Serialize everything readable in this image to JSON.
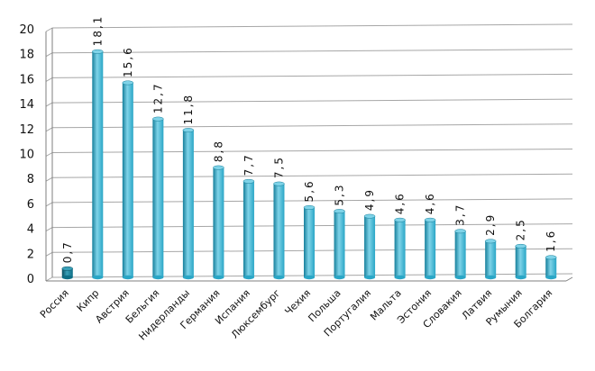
{
  "chart_data": {
    "type": "bar",
    "categories": [
      "Россия",
      "Кипр",
      "Австрия",
      "Бельгия",
      "Нидерланды",
      "Германия",
      "Испания",
      "Люксембург",
      "Чехия",
      "Польша",
      "Португалия",
      "Мальта",
      "Эстония",
      "Словакия",
      "Латвия",
      "Румыния",
      "Болгария"
    ],
    "values": [
      0.7,
      18.1,
      15.6,
      12.7,
      11.8,
      8.8,
      7.7,
      7.5,
      5.6,
      5.3,
      4.9,
      4.6,
      4.6,
      3.7,
      2.9,
      2.5,
      1.6
    ],
    "value_labels": [
      "0,7",
      "18,1",
      "15,6",
      "12,7",
      "11,8",
      "8,8",
      "7,7",
      "7,5",
      "5,6",
      "5,3",
      "4,9",
      "4,6",
      "4,6",
      "3,7",
      "2,9",
      "2,5",
      "1,6"
    ],
    "y_ticks": [
      "0",
      "2",
      "4",
      "6",
      "8",
      "10",
      "12",
      "14",
      "16",
      "18",
      "20"
    ],
    "ylim": [
      0,
      20
    ],
    "grid": true,
    "title": "",
    "xlabel": "",
    "ylabel": "",
    "colors": {
      "bar": "#2aa6c6",
      "bar_light": "#7fd3e8",
      "bar_dark": "#167f9b",
      "highlight_bar": "#0f6f86",
      "highlight_light": "#3aa0b8",
      "highlight_dark": "#0a4f61",
      "grid": "#a6a6a6",
      "axis": "#7f7f7f"
    }
  }
}
